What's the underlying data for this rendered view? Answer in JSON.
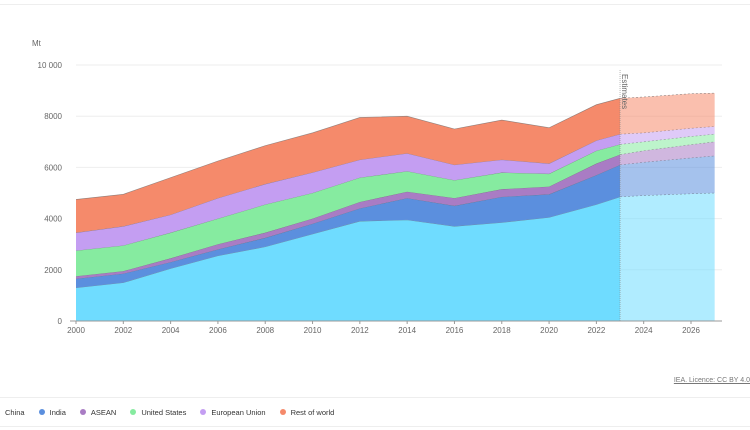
{
  "chart_data": {
    "type": "area",
    "stacked": true,
    "ylabel": "Mt",
    "ylim": [
      0,
      10000
    ],
    "xlim": [
      2000,
      2027
    ],
    "yticks": [
      0,
      2000,
      4000,
      6000,
      8000,
      10000
    ],
    "ytick_labels": [
      "0",
      "2000",
      "4000",
      "6000",
      "8000",
      "10 000"
    ],
    "xticks": [
      "2000",
      "2002",
      "2004",
      "2006",
      "2008",
      "2010",
      "2012",
      "2014",
      "2016",
      "2018",
      "2020",
      "2022",
      "2024",
      "2026"
    ],
    "grid": true,
    "legend_position": "bottom",
    "annotation": "Estimates",
    "estimates_from": 2023,
    "x": [
      2000,
      2002,
      2004,
      2006,
      2008,
      2010,
      2012,
      2014,
      2016,
      2018,
      2020,
      2022,
      2023,
      2024,
      2026,
      2027
    ],
    "series": [
      {
        "name": "China",
        "color": "#6fdcff",
        "values": [
          1300,
          1500,
          2050,
          2550,
          2900,
          3400,
          3900,
          3950,
          3700,
          3850,
          4050,
          4550,
          4850,
          4900,
          4970,
          5000
        ]
      },
      {
        "name": "India",
        "color": "#5b8fde",
        "values": [
          350,
          350,
          250,
          250,
          350,
          400,
          500,
          850,
          800,
          1000,
          900,
          1150,
          1250,
          1300,
          1400,
          1450
        ]
      },
      {
        "name": "ASEAN",
        "color": "#a97cc4",
        "values": [
          100,
          100,
          150,
          200,
          200,
          200,
          250,
          250,
          300,
          300,
          300,
          450,
          400,
          450,
          520,
          550
        ]
      },
      {
        "name": "United States",
        "color": "#86eba0",
        "values": [
          1000,
          1000,
          1000,
          1000,
          1100,
          1000,
          950,
          800,
          700,
          650,
          500,
          500,
          400,
          350,
          320,
          300
        ]
      },
      {
        "name": "European Union",
        "color": "#c49ef2",
        "values": [
          700,
          750,
          700,
          800,
          800,
          800,
          700,
          700,
          600,
          500,
          400,
          400,
          400,
          350,
          320,
          300
        ]
      },
      {
        "name": "Rest of world",
        "color": "#f58a6b",
        "values": [
          1300,
          1250,
          1450,
          1450,
          1500,
          1550,
          1650,
          1450,
          1400,
          1550,
          1400,
          1400,
          1400,
          1400,
          1350,
          1300
        ]
      }
    ]
  },
  "footer": {
    "licence": "IEA. Licence: CC BY 4.0"
  }
}
